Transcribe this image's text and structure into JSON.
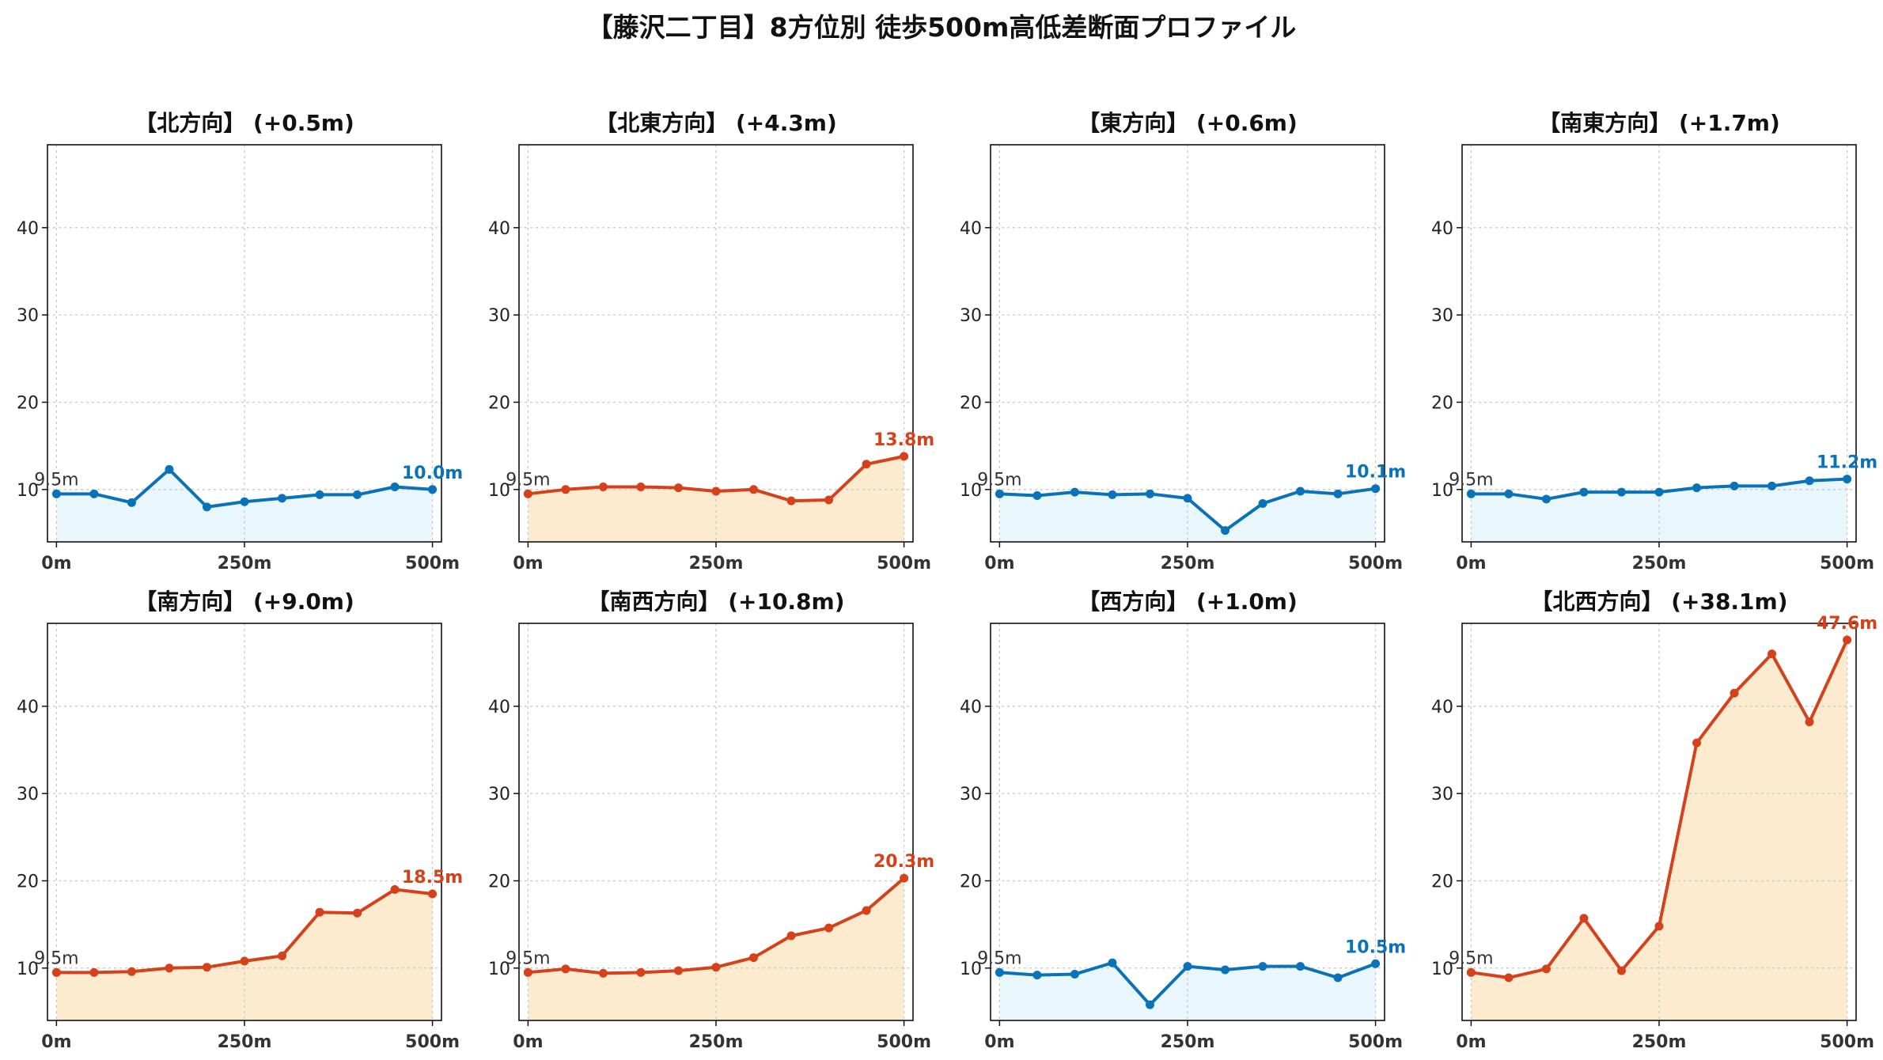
{
  "title": "【藤沢二丁目】8方位別 徒歩500m高低差断面プロファイル",
  "colors": {
    "up_line": "#d4411a",
    "up_fill": "#fdebd0",
    "flat_line": "#0a72b8",
    "flat_fill": "#e9f6fb",
    "grid": "#c8c8c8"
  },
  "chart_data": [
    {
      "type": "line",
      "title": "【北方向】 (+0.5m)",
      "x": [
        0,
        50,
        100,
        150,
        200,
        250,
        300,
        350,
        400,
        450,
        500
      ],
      "xticks": [
        0,
        250,
        500
      ],
      "xticklabels": [
        "0m",
        "250m",
        "500m"
      ],
      "yticks": [
        10,
        20,
        30,
        40
      ],
      "ylim": [
        4,
        49.5
      ],
      "xlim": [
        -12,
        512
      ],
      "values": [
        9.5,
        9.5,
        8.5,
        12.3,
        8.0,
        8.6,
        9.0,
        9.4,
        9.4,
        10.3,
        10.0
      ],
      "start_label": "9.5m",
      "end_label": "10.0m",
      "trend": "flat",
      "grid": true
    },
    {
      "type": "line",
      "title": "【北東方向】 (+4.3m)",
      "x": [
        0,
        50,
        100,
        150,
        200,
        250,
        300,
        350,
        400,
        450,
        500
      ],
      "xticks": [
        0,
        250,
        500
      ],
      "xticklabels": [
        "0m",
        "250m",
        "500m"
      ],
      "yticks": [
        10,
        20,
        30,
        40
      ],
      "ylim": [
        4,
        49.5
      ],
      "xlim": [
        -12,
        512
      ],
      "values": [
        9.5,
        10.0,
        10.3,
        10.3,
        10.2,
        9.8,
        10.0,
        8.7,
        8.8,
        12.9,
        13.8
      ],
      "start_label": "9.5m",
      "end_label": "13.8m",
      "trend": "up",
      "grid": true
    },
    {
      "type": "line",
      "title": "【東方向】 (+0.6m)",
      "x": [
        0,
        50,
        100,
        150,
        200,
        250,
        300,
        350,
        400,
        450,
        500
      ],
      "xticks": [
        0,
        250,
        500
      ],
      "xticklabels": [
        "0m",
        "250m",
        "500m"
      ],
      "yticks": [
        10,
        20,
        30,
        40
      ],
      "ylim": [
        4,
        49.5
      ],
      "xlim": [
        -12,
        512
      ],
      "values": [
        9.5,
        9.3,
        9.7,
        9.4,
        9.5,
        9.0,
        5.3,
        8.4,
        9.8,
        9.5,
        10.1
      ],
      "start_label": "9.5m",
      "end_label": "10.1m",
      "trend": "flat",
      "grid": true
    },
    {
      "type": "line",
      "title": "【南東方向】 (+1.7m)",
      "x": [
        0,
        50,
        100,
        150,
        200,
        250,
        300,
        350,
        400,
        450,
        500
      ],
      "xticks": [
        0,
        250,
        500
      ],
      "xticklabels": [
        "0m",
        "250m",
        "500m"
      ],
      "yticks": [
        10,
        20,
        30,
        40
      ],
      "ylim": [
        4,
        49.5
      ],
      "xlim": [
        -12,
        512
      ],
      "values": [
        9.5,
        9.5,
        8.9,
        9.7,
        9.7,
        9.7,
        10.2,
        10.4,
        10.4,
        11.0,
        11.2
      ],
      "start_label": "9.5m",
      "end_label": "11.2m",
      "trend": "flat",
      "grid": true
    },
    {
      "type": "line",
      "title": "【南方向】 (+9.0m)",
      "x": [
        0,
        50,
        100,
        150,
        200,
        250,
        300,
        350,
        400,
        450,
        500
      ],
      "xticks": [
        0,
        250,
        500
      ],
      "xticklabels": [
        "0m",
        "250m",
        "500m"
      ],
      "yticks": [
        10,
        20,
        30,
        40
      ],
      "ylim": [
        4,
        49.5
      ],
      "xlim": [
        -12,
        512
      ],
      "values": [
        9.5,
        9.5,
        9.6,
        10.0,
        10.1,
        10.8,
        11.4,
        16.4,
        16.3,
        19.0,
        18.5
      ],
      "start_label": "9.5m",
      "end_label": "18.5m",
      "trend": "up",
      "grid": true
    },
    {
      "type": "line",
      "title": "【南西方向】 (+10.8m)",
      "x": [
        0,
        50,
        100,
        150,
        200,
        250,
        300,
        350,
        400,
        450,
        500
      ],
      "xticks": [
        0,
        250,
        500
      ],
      "xticklabels": [
        "0m",
        "250m",
        "500m"
      ],
      "yticks": [
        10,
        20,
        30,
        40
      ],
      "ylim": [
        4,
        49.5
      ],
      "xlim": [
        -12,
        512
      ],
      "values": [
        9.5,
        9.9,
        9.4,
        9.5,
        9.7,
        10.1,
        11.2,
        13.7,
        14.6,
        16.6,
        20.3
      ],
      "start_label": "9.5m",
      "end_label": "20.3m",
      "trend": "up",
      "grid": true
    },
    {
      "type": "line",
      "title": "【西方向】 (+1.0m)",
      "x": [
        0,
        50,
        100,
        150,
        200,
        250,
        300,
        350,
        400,
        450,
        500
      ],
      "xticks": [
        0,
        250,
        500
      ],
      "xticklabels": [
        "0m",
        "250m",
        "500m"
      ],
      "yticks": [
        10,
        20,
        30,
        40
      ],
      "ylim": [
        4,
        49.5
      ],
      "xlim": [
        -12,
        512
      ],
      "values": [
        9.5,
        9.2,
        9.3,
        10.6,
        5.8,
        10.2,
        9.8,
        10.2,
        10.2,
        8.9,
        10.5
      ],
      "start_label": "9.5m",
      "end_label": "10.5m",
      "trend": "flat",
      "grid": true
    },
    {
      "type": "line",
      "title": "【北西方向】 (+38.1m)",
      "x": [
        0,
        50,
        100,
        150,
        200,
        250,
        300,
        350,
        400,
        450,
        500
      ],
      "xticks": [
        0,
        250,
        500
      ],
      "xticklabels": [
        "0m",
        "250m",
        "500m"
      ],
      "yticks": [
        10,
        20,
        30,
        40
      ],
      "ylim": [
        4,
        49.5
      ],
      "xlim": [
        -12,
        512
      ],
      "values": [
        9.5,
        8.9,
        9.9,
        15.7,
        9.7,
        14.8,
        35.8,
        41.5,
        46.0,
        38.2,
        47.6
      ],
      "start_label": "9.5m",
      "end_label": "47.6m",
      "trend": "up",
      "grid": true
    }
  ]
}
